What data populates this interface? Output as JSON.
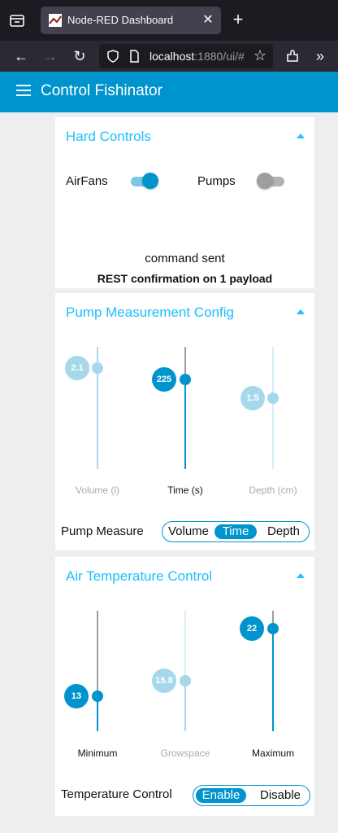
{
  "browser": {
    "tab_title": "Node-RED Dashboard",
    "url_host": "localhost",
    "url_rest": ":1880/ui/#"
  },
  "app": {
    "title": "Control Fishinator"
  },
  "hard_controls": {
    "title": "Hard Controls",
    "airfans_label": "AirFans",
    "airfans_on": true,
    "pumps_label": "Pumps",
    "pumps_on": false,
    "status_text": "command sent",
    "confirmation_text": "REST confirmation on 1 payload"
  },
  "pump_config": {
    "title": "Pump Measurement Config",
    "sliders": [
      {
        "label": "Volume (l)",
        "value": "2.1",
        "active": false
      },
      {
        "label": "Time (s)",
        "value": "225",
        "active": true
      },
      {
        "label": "Depth (cm)",
        "value": "1.5",
        "active": false
      }
    ],
    "measure_label": "Pump Measure",
    "options": [
      "Volume",
      "Time",
      "Depth"
    ],
    "selected": "Time"
  },
  "air_temp": {
    "title": "Air Temperature Control",
    "sliders": [
      {
        "label": "Minimum",
        "value": "13",
        "active": true
      },
      {
        "label": "Growspace",
        "value": "15.8",
        "active": false
      },
      {
        "label": "Maximum",
        "value": "22",
        "active": true
      }
    ],
    "control_label": "Temperature Control",
    "options": [
      "Enable",
      "Disable"
    ],
    "selected": "Enable"
  },
  "colors": {
    "accent": "#0094ce",
    "header_text": "#1bbfff",
    "inactive": "#a6d8ec"
  }
}
